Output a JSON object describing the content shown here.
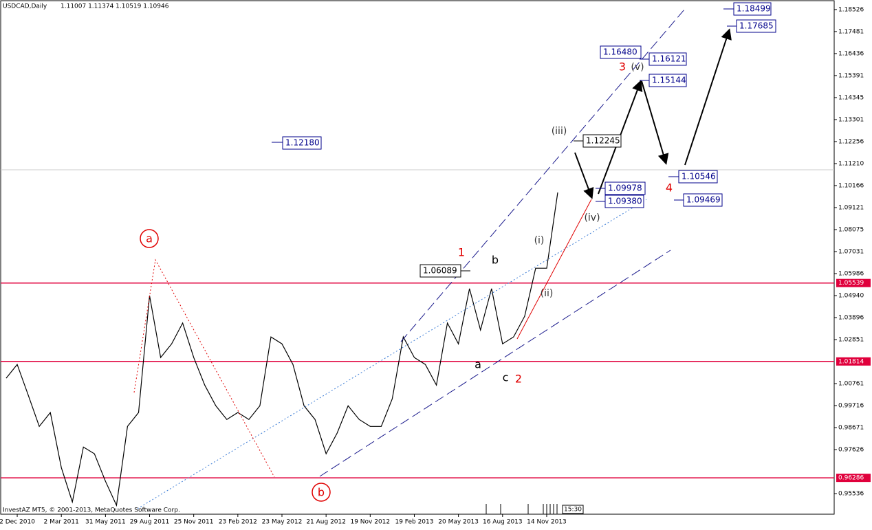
{
  "chart_data": {
    "type": "line",
    "title": "USDCAD,Daily",
    "subtitle": "1.11007 1.11374 1.10519 1.10946",
    "categories": [
      null,
      "2 Dec 2010",
      null,
      null,
      null,
      "2 Mar 2011",
      null,
      null,
      null,
      "31 May 2011",
      null,
      null,
      null,
      "29 Aug 2011",
      null,
      null,
      null,
      "25 Nov 2011",
      null,
      null,
      null,
      "23 Feb 2012",
      null,
      null,
      null,
      "23 May 2012",
      null,
      null,
      null,
      "21 Aug 2012",
      null,
      null,
      null,
      "19 Nov 2012",
      null,
      null,
      null,
      "19 Feb 2013",
      null,
      null,
      null,
      "20 May 2013",
      null,
      null,
      null,
      "16 Aug 2013",
      null,
      null,
      null,
      "14 Nov 2013",
      null
    ],
    "series": [
      {
        "name": "USDCAD",
        "color": "#000000",
        "values": [
          1.0102,
          1.0167,
          1.0021,
          0.9873,
          0.9939,
          0.9677,
          0.9514,
          0.9775,
          0.9743,
          0.9612,
          0.9498,
          0.9873,
          0.9939,
          1.0494,
          1.02,
          1.0265,
          1.0364,
          1.02,
          1.0069,
          0.9971,
          0.9906,
          0.9939,
          0.9906,
          0.9971,
          1.0298,
          1.0265,
          1.0167,
          0.9971,
          0.9906,
          0.9743,
          0.9841,
          0.9971,
          0.9906,
          0.9873,
          0.9873,
          1.0004,
          1.0298,
          1.02,
          1.0167,
          1.0069,
          1.0364,
          1.0265,
          1.0527,
          1.0331,
          1.0527,
          1.0265,
          1.0298,
          1.0396,
          1.0624,
          1.0624,
          1.0984
        ]
      }
    ],
    "ylim": [
      0.9456,
      1.1898
    ],
    "yticks": [
      1.18526,
      1.17481,
      1.16436,
      1.15391,
      1.14345,
      1.13301,
      1.12256,
      {
        "value": 1.1121,
        "label": "1.11210"
      },
      1.10166,
      1.09121,
      1.08075,
      1.07031,
      1.05986,
      {
        "value": 1.0494,
        "label": "1.04940"
      },
      1.03896,
      1.02851,
      1.00761,
      0.99716,
      0.98671,
      0.97626,
      0.95536
    ],
    "levels": [
      1.05539,
      1.01814,
      0.96286
    ],
    "level_color": "#e0003c",
    "annotations": {
      "price_labels": [
        "1.12180",
        "1.18499",
        "1.17685",
        "1.16480",
        "1.16121",
        "1.15144",
        "1.12245",
        "1.10546",
        "1.09978",
        "1.09380",
        "1.09469",
        "1.06089"
      ],
      "wave_labels": [
        "a",
        "b",
        "1",
        "2",
        "3",
        "4",
        "b",
        "a",
        "c",
        "(i)",
        "(ii)",
        "(iii)",
        "(iv)",
        "(v)"
      ]
    },
    "footer": "InvestAZ MT5, © 2001-2013, MetaQuotes Software Corp.",
    "clock": "15:30"
  }
}
